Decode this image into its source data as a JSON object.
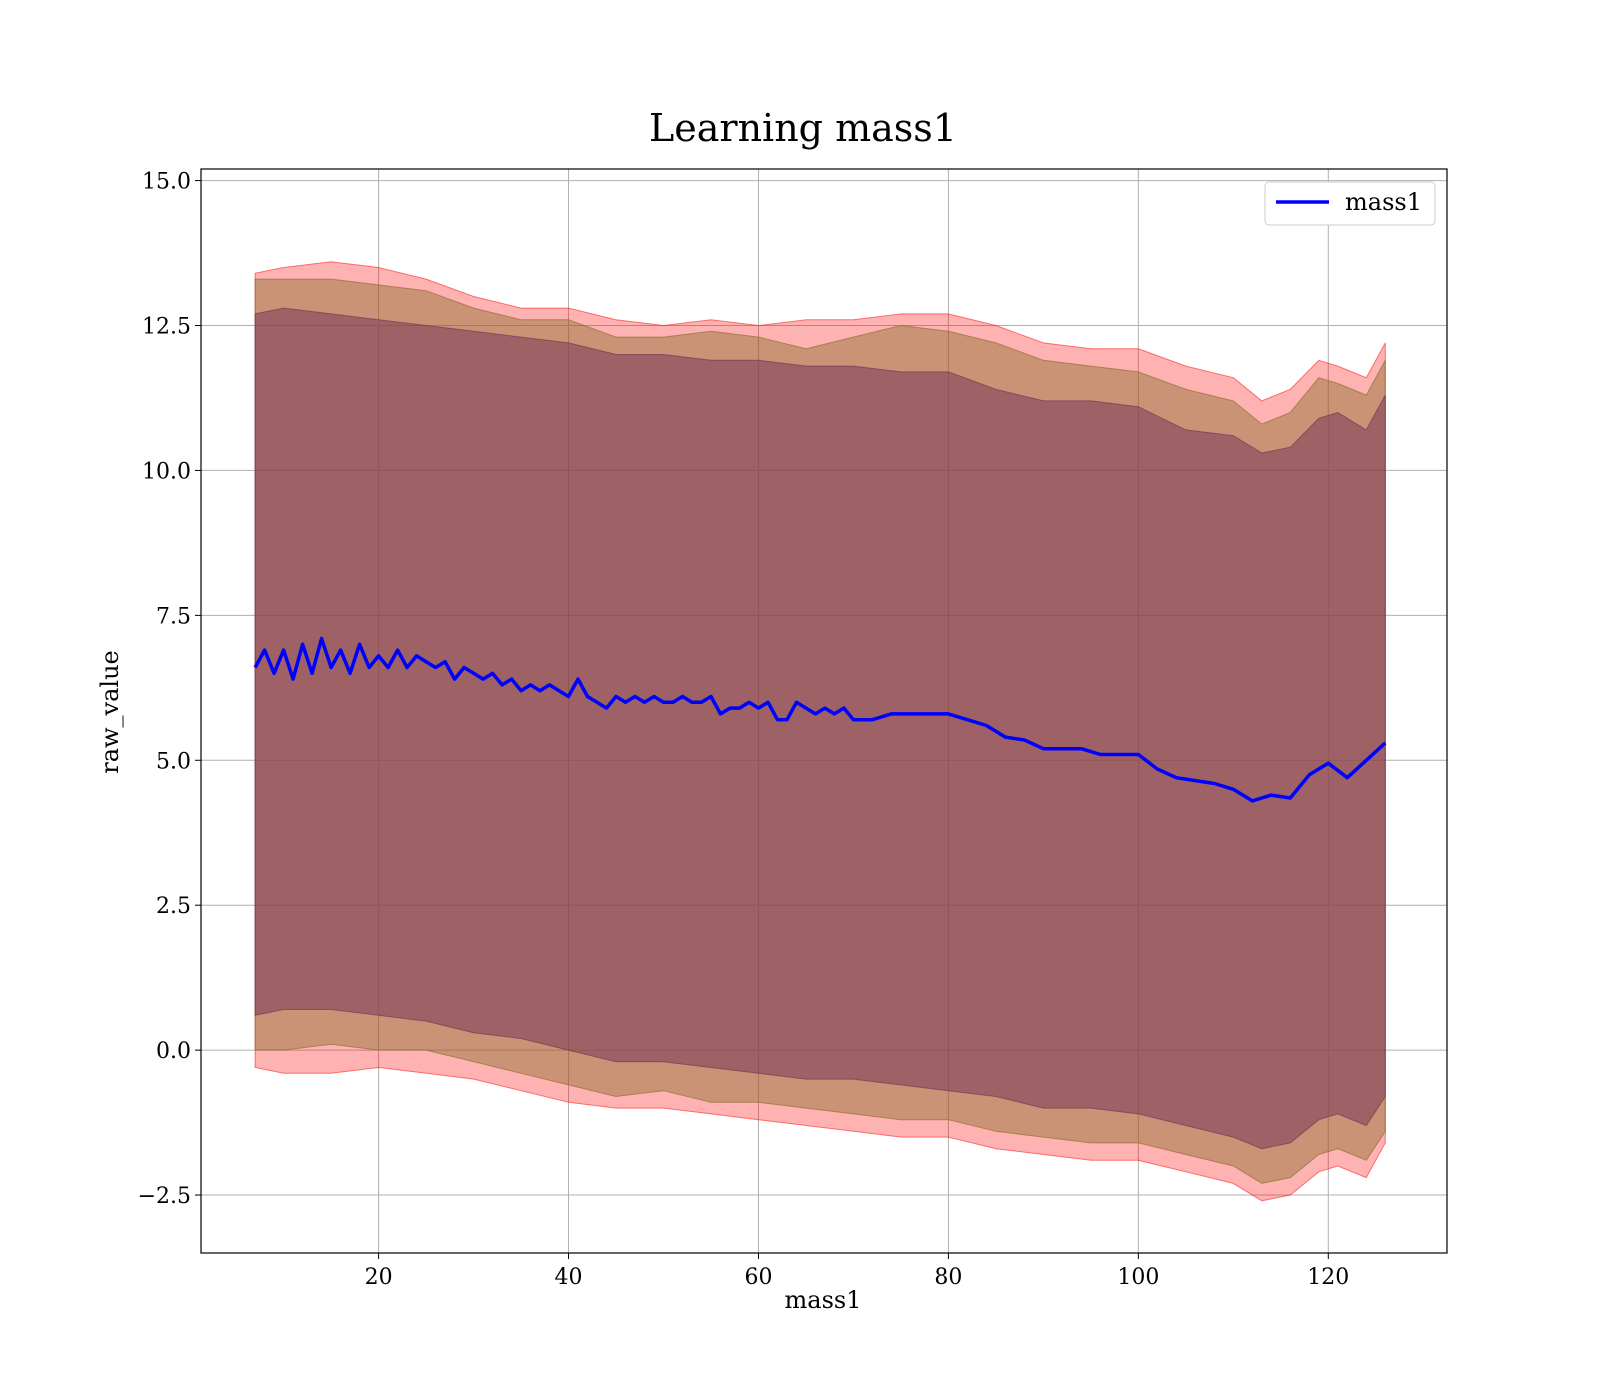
{
  "chart_data": {
    "type": "line",
    "title": "Learning mass1",
    "xlabel": "mass1",
    "ylabel": "raw_value",
    "xlim": [
      1.3,
      132.5
    ],
    "ylim": [
      -3.5,
      15.2
    ],
    "xticks": [
      20,
      40,
      60,
      80,
      100,
      120
    ],
    "yticks": [
      -2.5,
      0.0,
      2.5,
      5.0,
      7.5,
      10.0,
      12.5,
      15.0
    ],
    "xtick_labels": [
      "20",
      "40",
      "60",
      "80",
      "100",
      "120"
    ],
    "ytick_labels": [
      "−2.5",
      "0.0",
      "2.5",
      "5.0",
      "7.5",
      "10.0",
      "12.5",
      "15.0"
    ],
    "grid": true,
    "legend": {
      "position": "upper right",
      "entries": [
        {
          "label": "mass1",
          "color": "#0000ff"
        }
      ]
    },
    "series": [
      {
        "name": "mass1",
        "color": "#0000ff",
        "x": [
          7,
          8,
          9,
          10,
          11,
          12,
          13,
          14,
          15,
          16,
          17,
          18,
          19,
          20,
          21,
          22,
          23,
          24,
          25,
          26,
          27,
          28,
          29,
          30,
          31,
          32,
          33,
          34,
          35,
          36,
          37,
          38,
          39,
          40,
          41,
          42,
          43,
          44,
          45,
          46,
          47,
          48,
          49,
          50,
          51,
          52,
          53,
          54,
          55,
          56,
          57,
          58,
          59,
          60,
          61,
          62,
          63,
          64,
          65,
          66,
          67,
          68,
          69,
          70,
          72,
          74,
          76,
          78,
          80,
          82,
          84,
          86,
          88,
          90,
          92,
          94,
          96,
          98,
          100,
          102,
          104,
          106,
          108,
          110,
          112,
          114,
          116,
          118,
          120,
          122,
          124,
          126
        ],
        "y": [
          6.6,
          6.9,
          6.5,
          6.9,
          6.4,
          7.0,
          6.5,
          7.1,
          6.6,
          6.9,
          6.5,
          7.0,
          6.6,
          6.8,
          6.6,
          6.9,
          6.6,
          6.8,
          6.7,
          6.6,
          6.7,
          6.4,
          6.6,
          6.5,
          6.4,
          6.5,
          6.3,
          6.4,
          6.2,
          6.3,
          6.2,
          6.3,
          6.2,
          6.1,
          6.4,
          6.1,
          6.0,
          5.9,
          6.1,
          6.0,
          6.1,
          6.0,
          6.1,
          6.0,
          6.0,
          6.1,
          6.0,
          6.0,
          6.1,
          5.8,
          5.9,
          5.9,
          6.0,
          5.9,
          6.0,
          5.7,
          5.7,
          6.0,
          5.9,
          5.8,
          5.9,
          5.8,
          5.9,
          5.7,
          5.7,
          5.8,
          5.8,
          5.8,
          5.8,
          5.7,
          5.6,
          5.4,
          5.35,
          5.2,
          5.2,
          5.2,
          5.1,
          5.1,
          5.1,
          4.85,
          4.7,
          4.65,
          4.6,
          4.5,
          4.3,
          4.4,
          4.35,
          4.75,
          4.95,
          4.7,
          5.0,
          5.3
        ]
      }
    ],
    "bands": [
      {
        "color": "#ff0000",
        "opacity": 0.3,
        "x": [
          7,
          10,
          15,
          20,
          25,
          30,
          35,
          40,
          45,
          50,
          55,
          60,
          65,
          70,
          75,
          80,
          85,
          90,
          95,
          100,
          105,
          110,
          113,
          116,
          119,
          121,
          124,
          126
        ],
        "upper": [
          13.4,
          13.5,
          13.6,
          13.5,
          13.3,
          13.0,
          12.8,
          12.8,
          12.6,
          12.5,
          12.6,
          12.5,
          12.6,
          12.6,
          12.7,
          12.7,
          12.5,
          12.2,
          12.1,
          12.1,
          11.8,
          11.6,
          11.2,
          11.4,
          11.9,
          11.8,
          11.6,
          12.2
        ],
        "lower": [
          -0.3,
          -0.4,
          -0.4,
          -0.3,
          -0.4,
          -0.5,
          -0.7,
          -0.9,
          -1.0,
          -1.0,
          -1.1,
          -1.2,
          -1.3,
          -1.4,
          -1.5,
          -1.5,
          -1.7,
          -1.8,
          -1.9,
          -1.9,
          -2.1,
          -2.3,
          -2.6,
          -2.5,
          -2.1,
          -2.0,
          -2.2,
          -1.6
        ]
      },
      {
        "color": "#8b6d2c",
        "opacity": 0.45,
        "x": [
          7,
          10,
          15,
          20,
          25,
          30,
          35,
          40,
          45,
          50,
          55,
          60,
          65,
          70,
          75,
          80,
          85,
          90,
          95,
          100,
          105,
          110,
          113,
          116,
          119,
          121,
          124,
          126
        ],
        "upper": [
          13.3,
          13.3,
          13.3,
          13.2,
          13.1,
          12.8,
          12.6,
          12.6,
          12.3,
          12.3,
          12.4,
          12.3,
          12.1,
          12.3,
          12.5,
          12.4,
          12.2,
          11.9,
          11.8,
          11.7,
          11.4,
          11.2,
          10.8,
          11.0,
          11.6,
          11.5,
          11.3,
          11.9
        ],
        "lower": [
          0.0,
          0.0,
          0.1,
          0.0,
          0.0,
          -0.2,
          -0.4,
          -0.6,
          -0.8,
          -0.7,
          -0.9,
          -0.9,
          -1.0,
          -1.1,
          -1.2,
          -1.2,
          -1.4,
          -1.5,
          -1.6,
          -1.6,
          -1.8,
          -2.0,
          -2.3,
          -2.2,
          -1.8,
          -1.7,
          -1.9,
          -1.4
        ]
      },
      {
        "color": "#7a3b5a",
        "opacity": 0.55,
        "x": [
          7,
          10,
          15,
          20,
          25,
          30,
          35,
          40,
          45,
          50,
          55,
          60,
          65,
          70,
          75,
          80,
          85,
          90,
          95,
          100,
          105,
          110,
          113,
          116,
          119,
          121,
          124,
          126
        ],
        "upper": [
          12.7,
          12.8,
          12.7,
          12.6,
          12.5,
          12.4,
          12.3,
          12.2,
          12.0,
          12.0,
          11.9,
          11.9,
          11.8,
          11.8,
          11.7,
          11.7,
          11.4,
          11.2,
          11.2,
          11.1,
          10.7,
          10.6,
          10.3,
          10.4,
          10.9,
          11.0,
          10.7,
          11.3
        ],
        "lower": [
          0.6,
          0.7,
          0.7,
          0.6,
          0.5,
          0.3,
          0.2,
          0.0,
          -0.2,
          -0.2,
          -0.3,
          -0.4,
          -0.5,
          -0.5,
          -0.6,
          -0.7,
          -0.8,
          -1.0,
          -1.0,
          -1.1,
          -1.3,
          -1.5,
          -1.7,
          -1.6,
          -1.2,
          -1.1,
          -1.3,
          -0.8
        ]
      }
    ]
  }
}
